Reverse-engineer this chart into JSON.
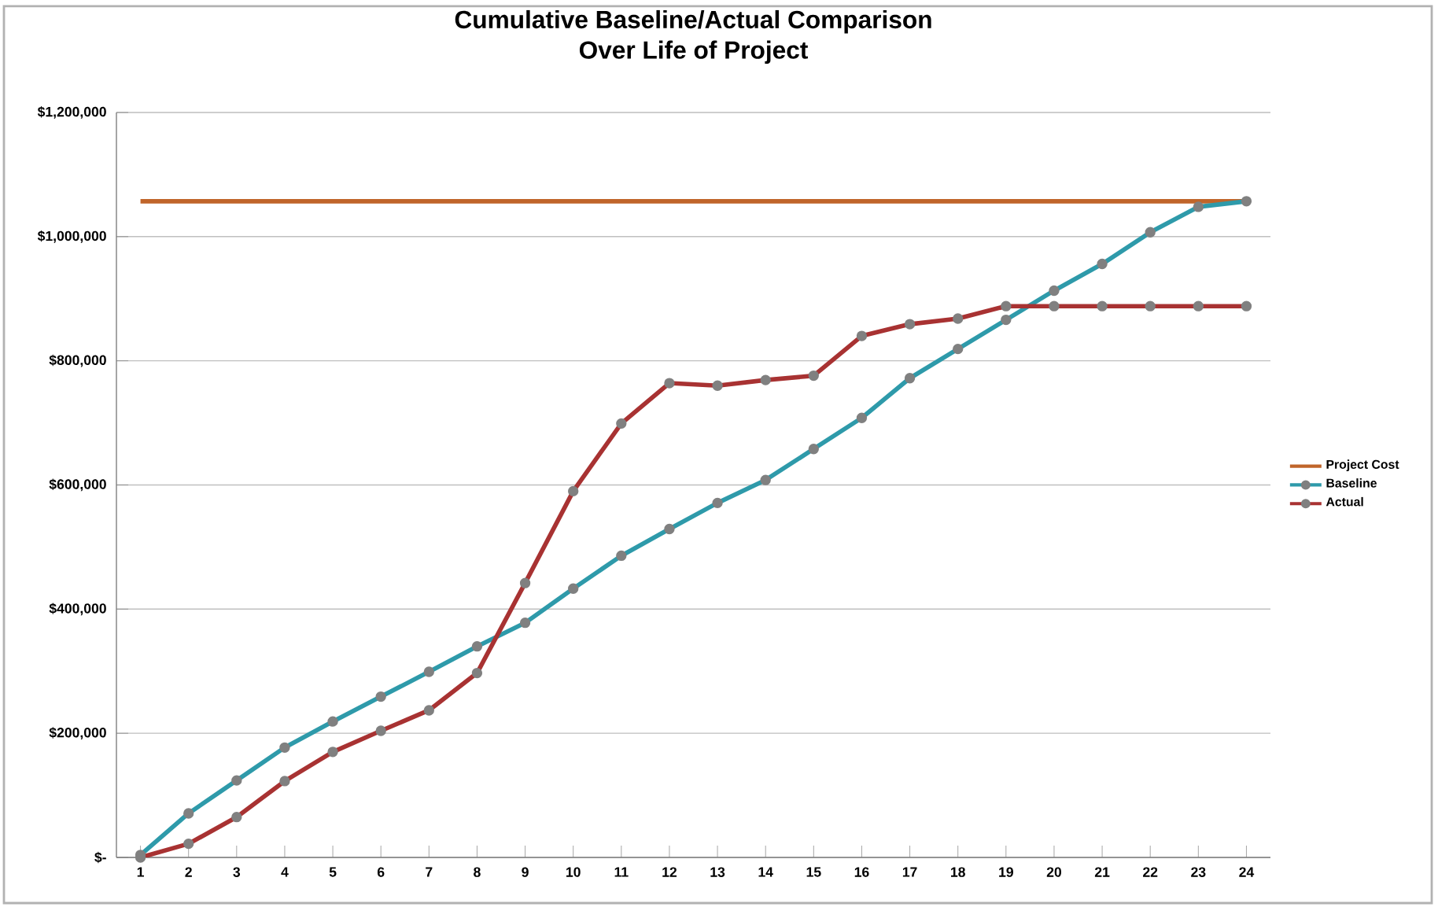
{
  "chart_data": {
    "type": "line",
    "title": "Cumulative Baseline/Actual Comparison\nOver Life of Project",
    "categories": [
      "1",
      "2",
      "3",
      "4",
      "5",
      "6",
      "7",
      "8",
      "9",
      "10",
      "11",
      "12",
      "13",
      "14",
      "15",
      "16",
      "17",
      "18",
      "19",
      "20",
      "21",
      "22",
      "23",
      "24"
    ],
    "series": [
      {
        "name": "Project Cost",
        "color": "#c0652a",
        "marker": "none",
        "values": [
          1057000,
          1057000,
          1057000,
          1057000,
          1057000,
          1057000,
          1057000,
          1057000,
          1057000,
          1057000,
          1057000,
          1057000,
          1057000,
          1057000,
          1057000,
          1057000,
          1057000,
          1057000,
          1057000,
          1057000,
          1057000,
          1057000,
          1057000,
          1057000
        ]
      },
      {
        "name": "Baseline",
        "color": "#2e9aaa",
        "values": [
          4000,
          71000,
          124000,
          177000,
          219000,
          259000,
          299000,
          340000,
          378000,
          433000,
          486000,
          529000,
          571000,
          608000,
          658000,
          708000,
          772000,
          819000,
          866000,
          913000,
          956000,
          1007000,
          1048000,
          1057000
        ]
      },
      {
        "name": "Actual",
        "color": "#a83232",
        "values": [
          0,
          22000,
          65000,
          123000,
          170000,
          204000,
          237000,
          297000,
          442000,
          590000,
          699000,
          764000,
          760000,
          769000,
          776000,
          840000,
          859000,
          868000,
          888000,
          888000,
          888000,
          888000,
          888000,
          888000
        ]
      }
    ],
    "ylim": [
      0,
      1200000
    ],
    "yticks": [
      {
        "value": 0,
        "label": "$-"
      },
      {
        "value": 200000,
        "label": "$200,000"
      },
      {
        "value": 400000,
        "label": "$400,000"
      },
      {
        "value": 600000,
        "label": "$600,000"
      },
      {
        "value": 800000,
        "label": "$800,000"
      },
      {
        "value": 1000000,
        "label": "$1,000,000"
      },
      {
        "value": 1200000,
        "label": "$1,200,000"
      }
    ],
    "grid": "y",
    "legend": "right",
    "marker": "circle",
    "line_style": "solid"
  }
}
